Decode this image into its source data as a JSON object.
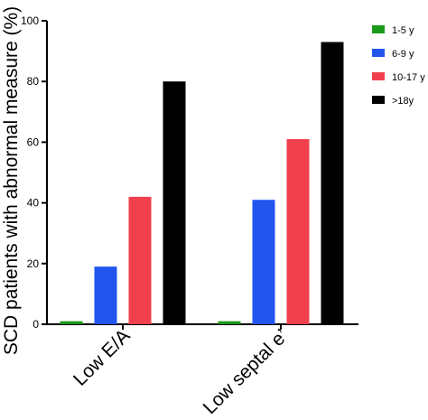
{
  "chart_data": {
    "type": "bar",
    "title": "",
    "xlabel": "",
    "ylabel": "SCD patients with abnormal measure (%)",
    "ylim": [
      0,
      100
    ],
    "yticks": [
      0,
      20,
      40,
      60,
      80,
      100
    ],
    "grid": false,
    "legend_position": "top-right",
    "categories": [
      "Low E/A",
      "Low septal e’"
    ],
    "series": [
      {
        "name": "1-5 y",
        "color": "#1a9a1a",
        "values": [
          1,
          1
        ]
      },
      {
        "name": "6-9 y",
        "color": "#2255ee",
        "values": [
          19,
          41
        ]
      },
      {
        "name": "10-17 y",
        "color": "#f0404e",
        "values": [
          42,
          61
        ]
      },
      {
        "name": ">18y",
        "color": "#000000",
        "values": [
          80,
          93
        ]
      }
    ]
  }
}
